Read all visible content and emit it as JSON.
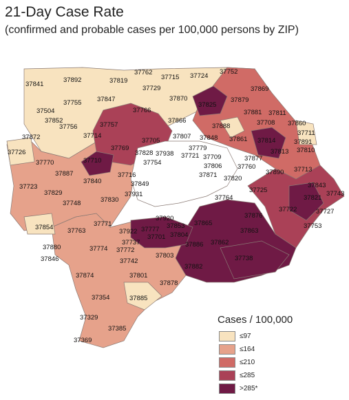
{
  "title": "21-Day Case Rate",
  "subtitle": "(confirmed and probable cases per 100,000 persons by ZIP)",
  "legend": {
    "title": "Cases / 100,000",
    "items": [
      {
        "label": "≤97",
        "color": "#f8e3bf"
      },
      {
        "label": "≤164",
        "color": "#e6a28b"
      },
      {
        "label": "≤210",
        "color": "#d06b66"
      },
      {
        "label": "≤285",
        "color": "#aa4157"
      },
      {
        "label": ">285*",
        "color": "#6f1a45"
      }
    ]
  },
  "zip_codes": [
    "37841",
    "37892",
    "37762",
    "37819",
    "37715",
    "37724",
    "37752",
    "37729",
    "37869",
    "37870",
    "37825",
    "37879",
    "37755",
    "37847",
    "37504",
    "37811",
    "37852",
    "37766",
    "37881",
    "37708",
    "37860",
    "37756",
    "37757",
    "37866",
    "37888",
    "37872",
    "37714",
    "37711",
    "37861",
    "37807",
    "37891",
    "37726",
    "37848",
    "37705",
    "37814",
    "37810",
    "37779",
    "37721",
    "37813",
    "37770",
    "37769",
    "37828",
    "37938",
    "37710",
    "37754",
    "37709",
    "37877",
    "37887",
    "37806",
    "37760",
    "37890",
    "37713",
    "37716",
    "37871",
    "37820",
    "37840",
    "37849",
    "37725",
    "37843",
    "37723",
    "37829",
    "37931",
    "37743",
    "37748",
    "37764",
    "37830",
    "37821",
    "37727",
    "37920",
    "37876",
    "37865",
    "37753",
    "37722",
    "37854",
    "37853",
    "37771",
    "37922",
    "37777",
    "37863",
    "37763",
    "37804",
    "37701",
    "37737",
    "37862",
    "37886",
    "37880",
    "37774",
    "37772",
    "37803",
    "37738",
    "37846",
    "37742",
    "37882",
    "37801",
    "37874",
    "37878",
    "37354",
    "37885",
    "37329",
    "37385",
    "37369"
  ]
}
